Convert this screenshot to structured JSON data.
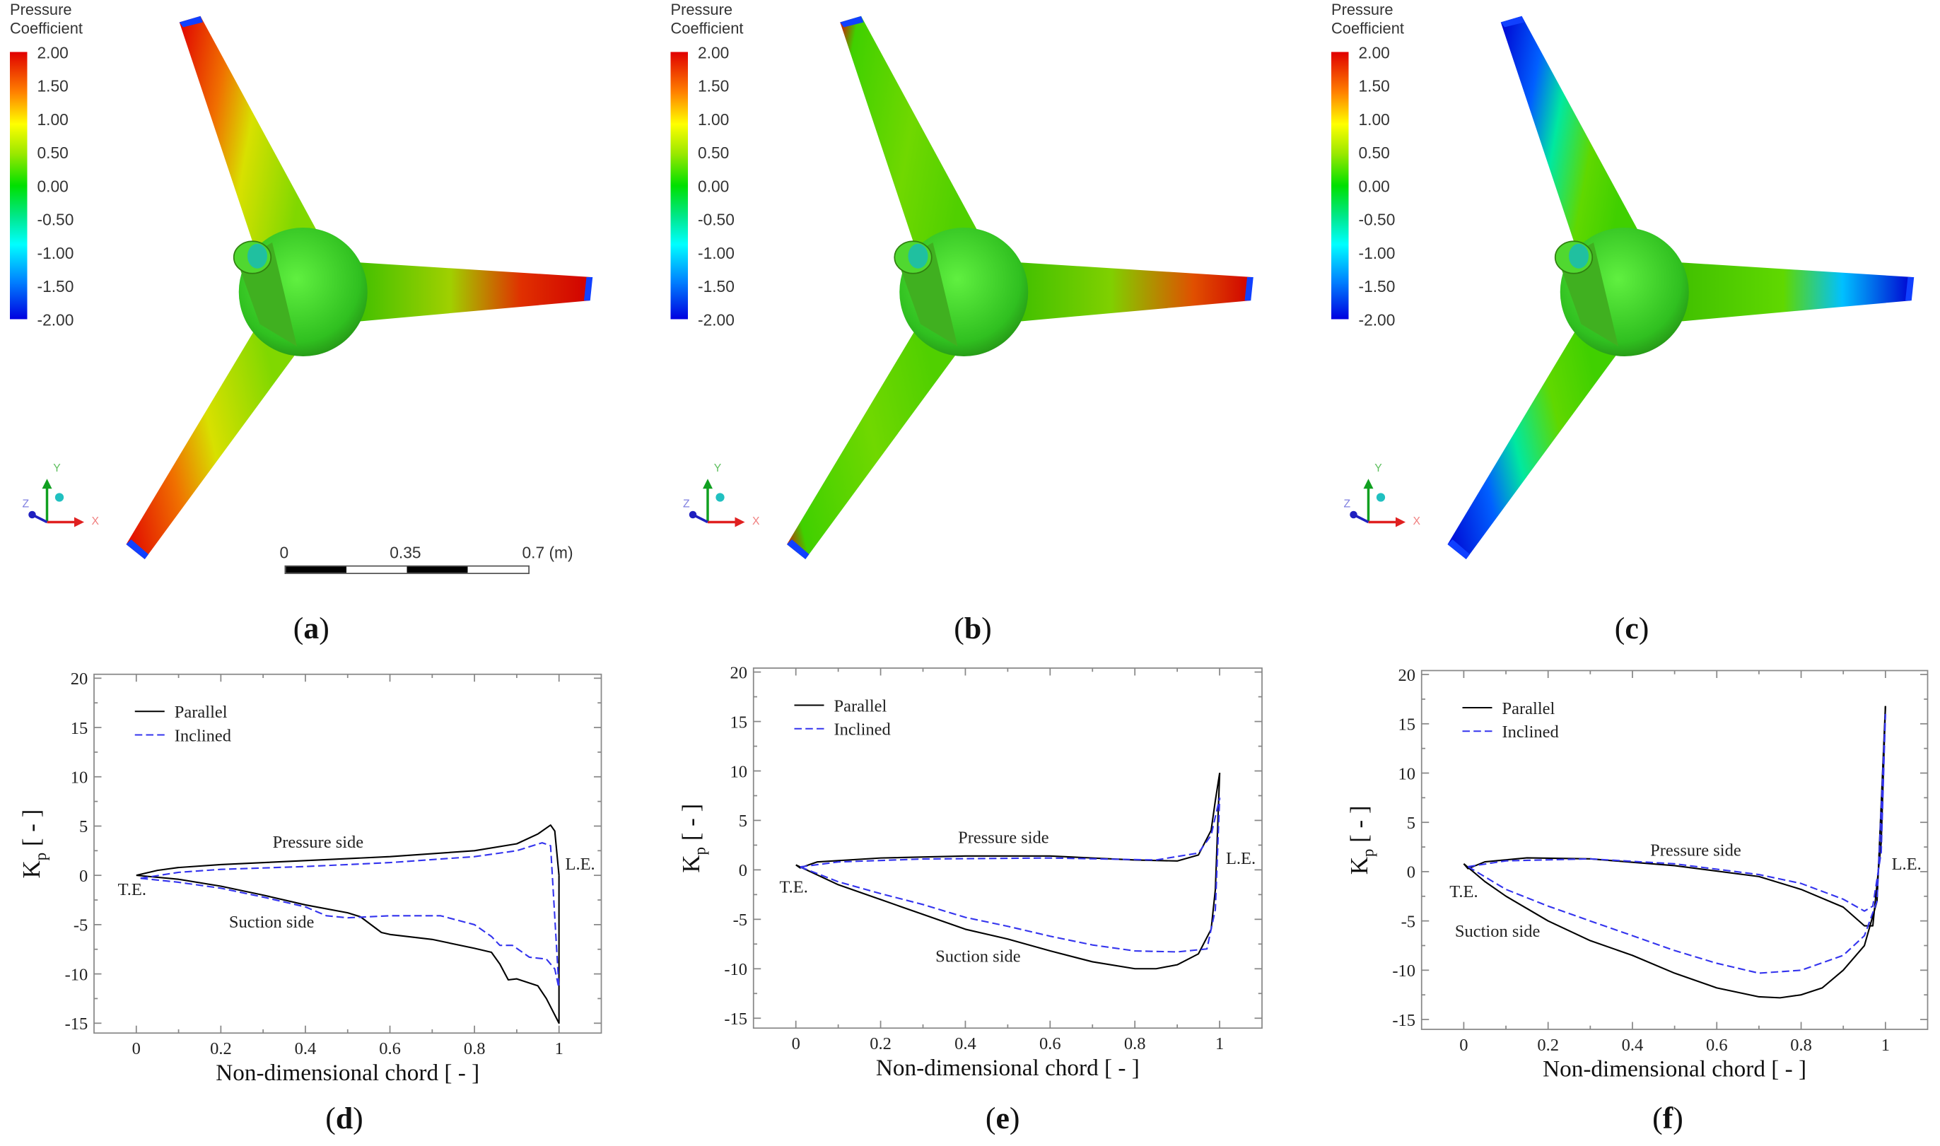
{
  "contours": [
    {
      "label_open": "(",
      "label_letter": "a",
      "label_close": ")",
      "colorbar": {
        "title_line1": "Pressure",
        "title_line2": "Coefficient",
        "ticks": [
          "2.00",
          "1.50",
          "1.00",
          "0.50",
          "0.00",
          "-0.50",
          "-1.00",
          "-1.50",
          "-2.00"
        ]
      },
      "triad": {
        "x": "X",
        "y": "Y",
        "z": "Z"
      },
      "scale_bar": {
        "labels": [
          "0",
          "0.35",
          "0.7 (m)"
        ]
      }
    },
    {
      "label_open": "(",
      "label_letter": "b",
      "label_close": ")",
      "colorbar": {
        "title_line1": "Pressure",
        "title_line2": "Coefficient",
        "ticks": [
          "2.00",
          "1.50",
          "1.00",
          "0.50",
          "0.00",
          "-0.50",
          "-1.00",
          "-1.50",
          "-2.00"
        ]
      },
      "triad": {
        "x": "X",
        "y": "Y",
        "z": "Z"
      }
    },
    {
      "label_open": "(",
      "label_letter": "c",
      "label_close": ")",
      "colorbar": {
        "title_line1": "Pressure",
        "title_line2": "Coefficient",
        "ticks": [
          "2.00",
          "1.50",
          "1.00",
          "0.50",
          "0.00",
          "-0.50",
          "-1.00",
          "-1.50",
          "-2.00"
        ]
      },
      "triad": {
        "x": "X",
        "y": "Y",
        "z": "Z"
      }
    }
  ],
  "colors": {
    "parallel": "#000000",
    "inclined": "#3333ee"
  },
  "chart_data": [
    {
      "type": "line",
      "panel": "d",
      "label_open": "(",
      "label_letter": "d",
      "label_close": ")",
      "xlabel": "Non-dimensional chord [ - ]",
      "ylabel_main": "K",
      "ylabel_sub": "p",
      "ylabel_rest": " [ - ]",
      "xlim": [
        -0.1,
        1.1
      ],
      "ylim": [
        -16,
        20.4
      ],
      "xticks": [
        0,
        0.2,
        0.4,
        0.6,
        0.8,
        1
      ],
      "xtick_labels": [
        "0",
        "0.2",
        "0.4",
        "0.6",
        "0.8",
        "1"
      ],
      "yticks": [
        -15,
        -10,
        -5,
        0,
        5,
        10,
        15,
        20
      ],
      "ytick_labels": [
        "-15",
        "-10",
        "-5",
        "0",
        "5",
        "10",
        "15",
        "20"
      ],
      "legend": {
        "placement": "top-left",
        "entries": [
          "Parallel",
          "Inclined"
        ]
      },
      "annotations": [
        {
          "text": "Pressure side",
          "x": 0.43,
          "y": 2.8
        },
        {
          "text": "Suction side",
          "x": 0.32,
          "y": -5.3
        },
        {
          "text": "T.E.",
          "x": -0.01,
          "y": -2.0
        },
        {
          "text": "L.E.",
          "x": 1.05,
          "y": 0.6
        }
      ],
      "series": [
        {
          "name": "Parallel",
          "style": "solid",
          "pressure": [
            [
              0,
              0
            ],
            [
              0.05,
              0.5
            ],
            [
              0.1,
              0.8
            ],
            [
              0.2,
              1.1
            ],
            [
              0.4,
              1.5
            ],
            [
              0.6,
              1.9
            ],
            [
              0.8,
              2.5
            ],
            [
              0.9,
              3.2
            ],
            [
              0.95,
              4.2
            ],
            [
              0.98,
              5.1
            ],
            [
              0.99,
              4.5
            ],
            [
              1.0,
              0
            ]
          ],
          "suction": [
            [
              0,
              0
            ],
            [
              0.1,
              -0.4
            ],
            [
              0.2,
              -1.1
            ],
            [
              0.3,
              -2
            ],
            [
              0.4,
              -3
            ],
            [
              0.5,
              -3.8
            ],
            [
              0.53,
              -4.2
            ],
            [
              0.58,
              -5.8
            ],
            [
              0.6,
              -6
            ],
            [
              0.7,
              -6.5
            ],
            [
              0.8,
              -7.4
            ],
            [
              0.84,
              -7.8
            ],
            [
              0.86,
              -9
            ],
            [
              0.88,
              -10.6
            ],
            [
              0.9,
              -10.5
            ],
            [
              0.95,
              -11.2
            ],
            [
              0.97,
              -12.5
            ],
            [
              1.0,
              -15
            ],
            [
              1.0,
              0
            ]
          ]
        },
        {
          "name": "Inclined",
          "style": "dashed",
          "pressure": [
            [
              0.01,
              -0.3
            ],
            [
              0.1,
              0.3
            ],
            [
              0.2,
              0.6
            ],
            [
              0.4,
              0.9
            ],
            [
              0.6,
              1.3
            ],
            [
              0.8,
              1.9
            ],
            [
              0.9,
              2.5
            ],
            [
              0.96,
              3.3
            ],
            [
              0.98,
              3.0
            ],
            [
              1.0,
              -11.5
            ]
          ],
          "suction": [
            [
              0.01,
              -0.3
            ],
            [
              0.1,
              -0.7
            ],
            [
              0.2,
              -1.3
            ],
            [
              0.3,
              -2.2
            ],
            [
              0.4,
              -3.2
            ],
            [
              0.45,
              -4.1
            ],
            [
              0.5,
              -4.3
            ],
            [
              0.6,
              -4.1
            ],
            [
              0.72,
              -4.1
            ],
            [
              0.8,
              -5
            ],
            [
              0.84,
              -6.2
            ],
            [
              0.86,
              -7.1
            ],
            [
              0.89,
              -7.1
            ],
            [
              0.93,
              -8.3
            ],
            [
              0.97,
              -8.5
            ],
            [
              0.99,
              -9.5
            ],
            [
              1.0,
              -11.5
            ]
          ]
        }
      ]
    },
    {
      "type": "line",
      "panel": "e",
      "label_open": "(",
      "label_letter": "e",
      "label_close": ")",
      "xlabel": "Non-dimensional chord [ - ]",
      "ylabel_main": "K",
      "ylabel_sub": "p",
      "ylabel_rest": " [ - ]",
      "xlim": [
        -0.1,
        1.1
      ],
      "ylim": [
        -16,
        20.4
      ],
      "xticks": [
        0,
        0.2,
        0.4,
        0.6,
        0.8,
        1
      ],
      "xtick_labels": [
        "0",
        "0.2",
        "0.4",
        "0.6",
        "0.8",
        "1"
      ],
      "yticks": [
        -15,
        -10,
        -5,
        0,
        5,
        10,
        15,
        20
      ],
      "ytick_labels": [
        "-15",
        "-10",
        "-5",
        "0",
        "5",
        "10",
        "15",
        "20"
      ],
      "legend": {
        "placement": "top-left",
        "entries": [
          "Parallel",
          "Inclined"
        ]
      },
      "annotations": [
        {
          "text": "Pressure side",
          "x": 0.49,
          "y": 2.7
        },
        {
          "text": "Suction side",
          "x": 0.43,
          "y": -9.3
        },
        {
          "text": "T.E.",
          "x": -0.005,
          "y": -2.3
        },
        {
          "text": "L.E.",
          "x": 1.05,
          "y": 0.6
        }
      ],
      "series": [
        {
          "name": "Parallel",
          "style": "solid",
          "pressure": [
            [
              0,
              0.5
            ],
            [
              0.01,
              0.2
            ],
            [
              0.05,
              0.8
            ],
            [
              0.2,
              1.2
            ],
            [
              0.4,
              1.4
            ],
            [
              0.6,
              1.4
            ],
            [
              0.8,
              1.0
            ],
            [
              0.9,
              0.9
            ],
            [
              0.95,
              1.5
            ],
            [
              0.98,
              4
            ],
            [
              0.99,
              7
            ],
            [
              1.0,
              9.8
            ]
          ],
          "suction": [
            [
              0,
              0.5
            ],
            [
              0.1,
              -1.5
            ],
            [
              0.2,
              -3
            ],
            [
              0.3,
              -4.5
            ],
            [
              0.4,
              -6
            ],
            [
              0.5,
              -7
            ],
            [
              0.6,
              -8.2
            ],
            [
              0.7,
              -9.3
            ],
            [
              0.8,
              -10
            ],
            [
              0.85,
              -10
            ],
            [
              0.9,
              -9.6
            ],
            [
              0.95,
              -8.5
            ],
            [
              0.98,
              -6
            ],
            [
              0.99,
              -2
            ],
            [
              1.0,
              9.8
            ]
          ]
        },
        {
          "name": "Inclined",
          "style": "dashed",
          "pressure": [
            [
              0.01,
              0.3
            ],
            [
              0.1,
              0.8
            ],
            [
              0.3,
              1.1
            ],
            [
              0.6,
              1.2
            ],
            [
              0.85,
              1.0
            ],
            [
              0.95,
              1.7
            ],
            [
              0.98,
              3.5
            ],
            [
              1.0,
              7.3
            ]
          ],
          "suction": [
            [
              0.01,
              0.3
            ],
            [
              0.1,
              -1.2
            ],
            [
              0.2,
              -2.4
            ],
            [
              0.3,
              -3.5
            ],
            [
              0.4,
              -4.8
            ],
            [
              0.5,
              -5.7
            ],
            [
              0.6,
              -6.7
            ],
            [
              0.7,
              -7.6
            ],
            [
              0.8,
              -8.2
            ],
            [
              0.9,
              -8.3
            ],
            [
              0.97,
              -8
            ],
            [
              0.99,
              -4
            ],
            [
              1.0,
              7.3
            ]
          ]
        }
      ]
    },
    {
      "type": "line",
      "panel": "f",
      "label_open": "(",
      "label_letter": "f",
      "label_close": ")",
      "xlabel": "Non-dimensional chord [ - ]",
      "ylabel_main": "K",
      "ylabel_sub": "p",
      "ylabel_rest": " [ - ]",
      "xlim": [
        -0.1,
        1.1
      ],
      "ylim": [
        -16,
        20.4
      ],
      "xticks": [
        0,
        0.2,
        0.4,
        0.6,
        0.8,
        1
      ],
      "xtick_labels": [
        "0",
        "0.2",
        "0.4",
        "0.6",
        "0.8",
        "1"
      ],
      "yticks": [
        -15,
        -10,
        -5,
        0,
        5,
        10,
        15,
        20
      ],
      "ytick_labels": [
        "-15",
        "-10",
        "-5",
        "0",
        "5",
        "10",
        "15",
        "20"
      ],
      "legend": {
        "placement": "top-left",
        "entries": [
          "Parallel",
          "Inclined"
        ]
      },
      "annotations": [
        {
          "text": "Pressure side",
          "x": 0.55,
          "y": 1.6
        },
        {
          "text": "Suction side",
          "x": 0.08,
          "y": -6.6
        },
        {
          "text": "T.E.",
          "x": 0.0,
          "y": -2.6
        },
        {
          "text": "L.E.",
          "x": 1.05,
          "y": 0.2
        }
      ],
      "series": [
        {
          "name": "Parallel",
          "style": "solid",
          "pressure": [
            [
              0,
              0.8
            ],
            [
              0.01,
              0.3
            ],
            [
              0.05,
              1
            ],
            [
              0.15,
              1.4
            ],
            [
              0.3,
              1.3
            ],
            [
              0.5,
              0.6
            ],
            [
              0.7,
              -0.5
            ],
            [
              0.8,
              -1.8
            ],
            [
              0.9,
              -3.6
            ],
            [
              0.95,
              -5.5
            ],
            [
              0.97,
              -5.5
            ],
            [
              0.99,
              3
            ],
            [
              1.0,
              16.8
            ]
          ],
          "suction": [
            [
              0,
              0.8
            ],
            [
              0.05,
              -1
            ],
            [
              0.1,
              -2.5
            ],
            [
              0.2,
              -5
            ],
            [
              0.3,
              -7
            ],
            [
              0.4,
              -8.5
            ],
            [
              0.5,
              -10.3
            ],
            [
              0.6,
              -11.8
            ],
            [
              0.7,
              -12.7
            ],
            [
              0.75,
              -12.8
            ],
            [
              0.8,
              -12.5
            ],
            [
              0.85,
              -11.8
            ],
            [
              0.9,
              -10
            ],
            [
              0.95,
              -7.5
            ],
            [
              0.98,
              -3
            ],
            [
              1.0,
              16.8
            ]
          ]
        },
        {
          "name": "Inclined",
          "style": "dashed",
          "pressure": [
            [
              0.01,
              0.5
            ],
            [
              0.1,
              1.1
            ],
            [
              0.3,
              1.3
            ],
            [
              0.5,
              0.8
            ],
            [
              0.7,
              -0.3
            ],
            [
              0.8,
              -1.2
            ],
            [
              0.9,
              -2.8
            ],
            [
              0.95,
              -4
            ],
            [
              0.97,
              -3.5
            ],
            [
              0.99,
              2
            ],
            [
              1.0,
              16
            ]
          ],
          "suction": [
            [
              0.01,
              0.5
            ],
            [
              0.1,
              -1.8
            ],
            [
              0.2,
              -3.5
            ],
            [
              0.3,
              -5
            ],
            [
              0.4,
              -6.5
            ],
            [
              0.5,
              -8
            ],
            [
              0.6,
              -9.3
            ],
            [
              0.7,
              -10.3
            ],
            [
              0.8,
              -10
            ],
            [
              0.9,
              -8.5
            ],
            [
              0.95,
              -6.5
            ],
            [
              0.98,
              -3
            ],
            [
              1.0,
              16
            ]
          ]
        }
      ]
    }
  ]
}
